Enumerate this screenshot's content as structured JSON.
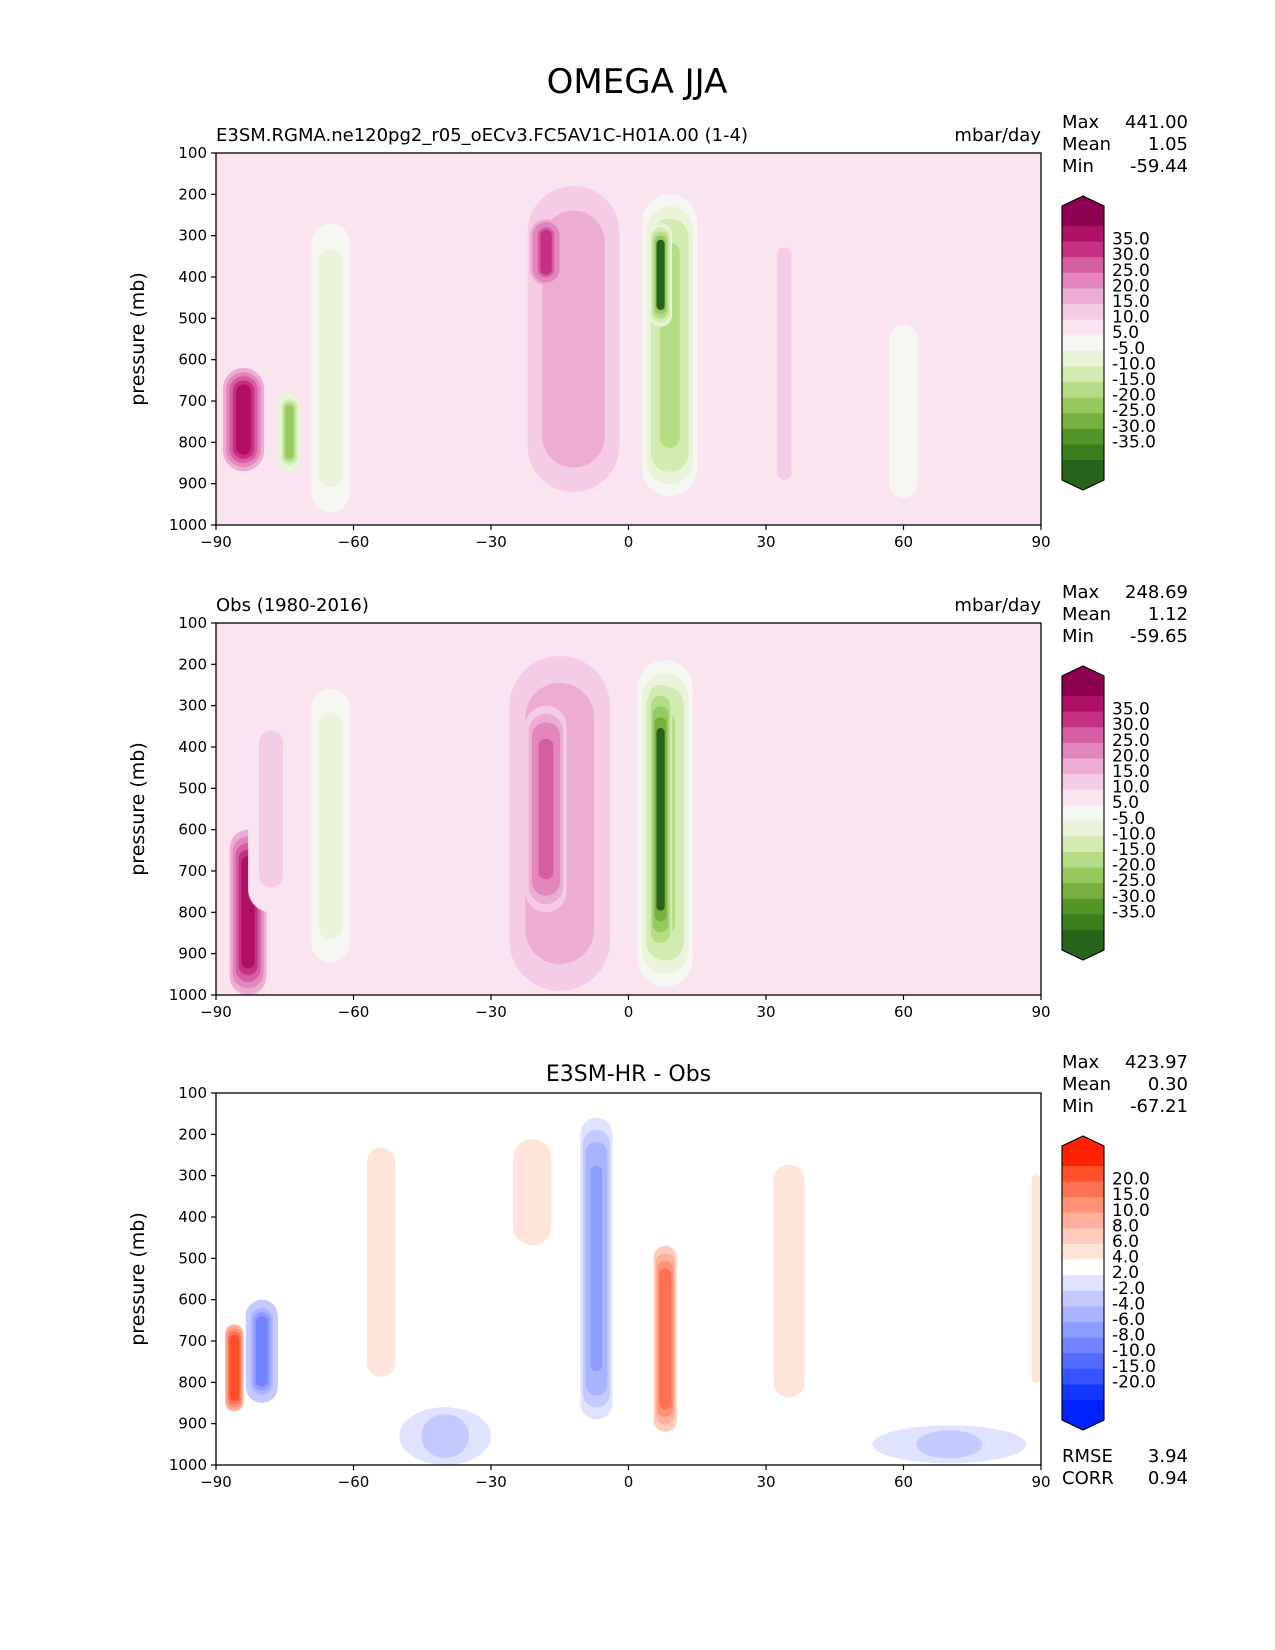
{
  "title": "OMEGA JJA",
  "chart_data": [
    {
      "type": "heatmap",
      "variant": "filled-contour",
      "title": "E3SM.RGMA.ne120pg2_r05_oECv3.FC5AV1C-H01A.00 (1-4)",
      "units": "mbar/day",
      "ylabel": "pressure (mb)",
      "xlabel": "",
      "xlim": [
        -90,
        90
      ],
      "ylim": [
        1000,
        100
      ],
      "xticks": [
        "−90",
        "−60",
        "−30",
        "0",
        "30",
        "60",
        "90"
      ],
      "yticks": [
        "100",
        "200",
        "300",
        "400",
        "500",
        "600",
        "700",
        "800",
        "900",
        "1000"
      ],
      "stats": [
        {
          "label": "Max",
          "value": "441.00"
        },
        {
          "label": "Mean",
          "value": "1.05"
        },
        {
          "label": "Min",
          "value": "-59.44"
        }
      ],
      "colorbar": {
        "labels": [
          "35.0",
          "30.0",
          "25.0",
          "20.0",
          "15.0",
          "10.0",
          "5.0",
          "-5.0",
          "-10.0",
          "-15.0",
          "-20.0",
          "-25.0",
          "-30.0",
          "-35.0"
        ],
        "colors": [
          "#8e0152",
          "#af0f65",
          "#c72f83",
          "#d55da1",
          "#e286bd",
          "#edacd4",
          "#f5cbe5",
          "#fae4ef",
          "#f6f6f3",
          "#e9f4d8",
          "#d2ebb1",
          "#b4dd86",
          "#97c95f",
          "#78b040",
          "#549529",
          "#37801c",
          "#276419"
        ]
      },
      "features": [
        {
          "x": -12,
          "w": 20,
          "ytop": 180,
          "ybot": 920,
          "value": 15
        },
        {
          "x": -18,
          "w": 7,
          "ytop": 260,
          "ybot": 420,
          "value": 28
        },
        {
          "x": 9,
          "w": 12,
          "ytop": 200,
          "ybot": 930,
          "value": -22
        },
        {
          "x": 7,
          "w": 5,
          "ytop": 270,
          "ybot": 520,
          "value": -35
        },
        {
          "x": -65,
          "w": 10,
          "ytop": 240,
          "ybot": 1000,
          "value": -12
        },
        {
          "x": -84,
          "w": 9,
          "ytop": 620,
          "ybot": 870,
          "value": 35
        },
        {
          "x": -74,
          "w": 5,
          "ytop": 680,
          "ybot": 870,
          "value": -25
        },
        {
          "x": 34,
          "w": 6,
          "ytop": 240,
          "ybot": 980,
          "value": 6
        },
        {
          "x": 60,
          "w": 12,
          "ytop": 450,
          "ybot": 1000,
          "value": -7
        }
      ]
    },
    {
      "type": "heatmap",
      "variant": "filled-contour",
      "title": "Obs (1980-2016)",
      "units": "mbar/day",
      "ylabel": "pressure (mb)",
      "xlabel": "",
      "xlim": [
        -90,
        90
      ],
      "ylim": [
        1000,
        100
      ],
      "xticks": [
        "−90",
        "−60",
        "−30",
        "0",
        "30",
        "60",
        "90"
      ],
      "yticks": [
        "100",
        "200",
        "300",
        "400",
        "500",
        "600",
        "700",
        "800",
        "900",
        "1000"
      ],
      "stats": [
        {
          "label": "Max",
          "value": "248.69"
        },
        {
          "label": "Mean",
          "value": "1.12"
        },
        {
          "label": "Min",
          "value": "-59.65"
        }
      ],
      "colorbar": {
        "labels": [
          "35.0",
          "30.0",
          "25.0",
          "20.0",
          "15.0",
          "10.0",
          "5.0",
          "-5.0",
          "-10.0",
          "-15.0",
          "-20.0",
          "-25.0",
          "-30.0",
          "-35.0"
        ],
        "colors": [
          "#8e0152",
          "#af0f65",
          "#c72f83",
          "#d55da1",
          "#e286bd",
          "#edacd4",
          "#f5cbe5",
          "#fae4ef",
          "#f6f6f3",
          "#e9f4d8",
          "#d2ebb1",
          "#b4dd86",
          "#97c95f",
          "#78b040",
          "#549529",
          "#37801c",
          "#276419"
        ]
      },
      "features": [
        {
          "x": -15,
          "w": 22,
          "ytop": 180,
          "ybot": 990,
          "value": 15
        },
        {
          "x": -18,
          "w": 9,
          "ytop": 300,
          "ybot": 800,
          "value": 22
        },
        {
          "x": 8,
          "w": 12,
          "ytop": 190,
          "ybot": 980,
          "value": -22
        },
        {
          "x": 7,
          "w": 5,
          "ytop": 250,
          "ybot": 900,
          "value": -38
        },
        {
          "x": -65,
          "w": 10,
          "ytop": 230,
          "ybot": 950,
          "value": -12
        },
        {
          "x": -83,
          "w": 8,
          "ytop": 600,
          "ybot": 1000,
          "value": 35
        },
        {
          "x": -78,
          "w": 10,
          "ytop": 300,
          "ybot": 800,
          "value": 7
        },
        {
          "x": 50,
          "w": 40,
          "ytop": 600,
          "ybot": 980,
          "value": 3
        }
      ]
    },
    {
      "type": "heatmap",
      "variant": "filled-contour",
      "title": "E3SM-HR - Obs",
      "units": "",
      "ylabel": "pressure (mb)",
      "xlabel": "",
      "xlim": [
        -90,
        90
      ],
      "ylim": [
        1000,
        100
      ],
      "xticks": [
        "−90",
        "−60",
        "−30",
        "0",
        "30",
        "60",
        "90"
      ],
      "yticks": [
        "100",
        "200",
        "300",
        "400",
        "500",
        "600",
        "700",
        "800",
        "900",
        "1000"
      ],
      "stats": [
        {
          "label": "Max",
          "value": "423.97"
        },
        {
          "label": "Mean",
          "value": "0.30"
        },
        {
          "label": "Min",
          "value": "-67.21"
        }
      ],
      "colorbar": {
        "labels": [
          "20.0",
          "15.0",
          "10.0",
          "8.0",
          "6.0",
          "4.0",
          "2.0",
          "-2.0",
          "-4.0",
          "-6.0",
          "-8.0",
          "-10.0",
          "-15.0",
          "-20.0"
        ],
        "colors": [
          "#ff2200",
          "#ff4e2a",
          "#ff7152",
          "#ff9276",
          "#ffb09c",
          "#ffcbbd",
          "#ffe4da",
          "#ffffff",
          "#dfe3ff",
          "#c3caff",
          "#a9b4ff",
          "#8d9cff",
          "#7183ff",
          "#536bff",
          "#3554ff",
          "#1437ff",
          "#0022ff"
        ]
      },
      "features": [
        {
          "x": -7,
          "w": 7,
          "ytop": 160,
          "ybot": 890,
          "value": -9
        },
        {
          "x": 8,
          "w": 5,
          "ytop": 470,
          "ybot": 920,
          "value": 12
        },
        {
          "x": -54,
          "w": 9,
          "ytop": 180,
          "ybot": 840,
          "value": 3
        },
        {
          "x": -21,
          "w": 10,
          "ytop": 200,
          "ybot": 480,
          "value": 4
        },
        {
          "x": -80,
          "w": 7,
          "ytop": 600,
          "ybot": 850,
          "value": -10
        },
        {
          "x": -86,
          "w": 4,
          "ytop": 660,
          "ybot": 870,
          "value": 18
        },
        {
          "x": -40,
          "w": 20,
          "ytop": 860,
          "ybot": 1000,
          "value": -5
        },
        {
          "x": 70,
          "w": 40,
          "ytop": 900,
          "ybot": 1000,
          "value": -4
        },
        {
          "x": 35,
          "w": 10,
          "ytop": 220,
          "ybot": 890,
          "value": 3
        },
        {
          "x": 89,
          "w": 3,
          "ytop": 250,
          "ybot": 850,
          "value": 3
        }
      ]
    }
  ],
  "diff_metrics": [
    {
      "label": "RMSE",
      "value": "3.94"
    },
    {
      "label": "CORR",
      "value": "0.94"
    }
  ]
}
